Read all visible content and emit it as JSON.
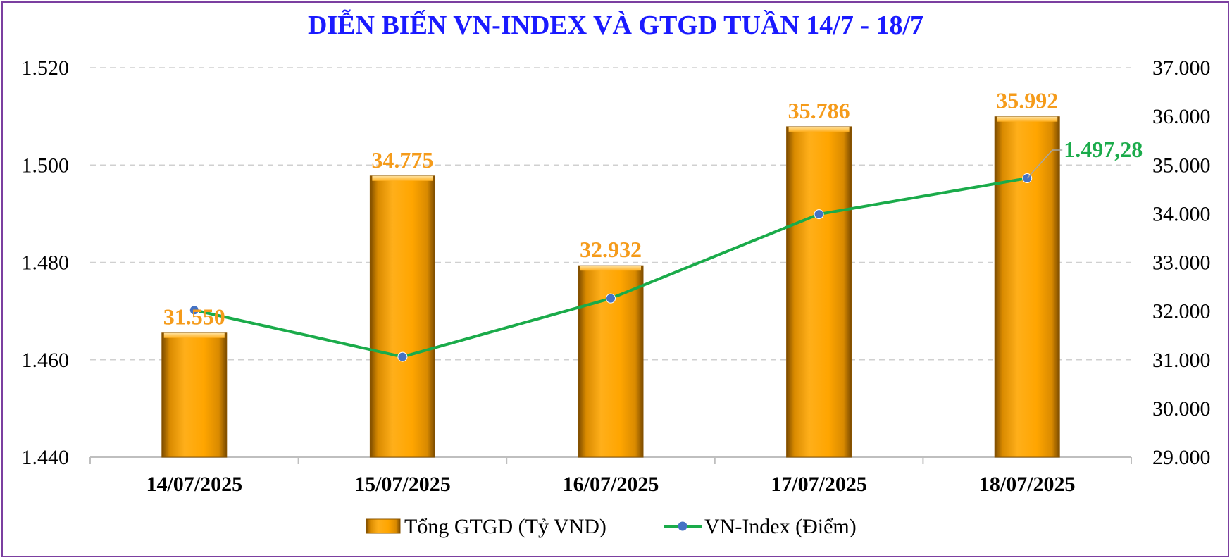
{
  "chart_data": {
    "type": "bar+line",
    "title": "DIỄN BIẾN VN-INDEX VÀ GTGD TUẦN 14/7 - 18/7",
    "categories": [
      "14/07/2025",
      "15/07/2025",
      "16/07/2025",
      "17/07/2025",
      "18/07/2025"
    ],
    "series": [
      {
        "name": "Tổng GTGD (Tỷ VND)",
        "kind": "bar",
        "axis": "right",
        "values": [
          31550,
          34775,
          32932,
          35786,
          35992
        ],
        "labels": [
          "31.550",
          "34.775",
          "32.932",
          "35.786",
          "35.992"
        ],
        "color": "#FFA500"
      },
      {
        "name": "VN-Index (Điểm)",
        "kind": "line",
        "axis": "left",
        "values": [
          1470.2,
          1460.6,
          1472.6,
          1489.9,
          1497.28
        ],
        "last_label": "1.497,28",
        "color": "#1aab4a",
        "marker_color": "#4472C4"
      }
    ],
    "y_left": {
      "min": 1440,
      "max": 1520,
      "ticks": [
        "1.440",
        "1.460",
        "1.480",
        "1.500",
        "1.520"
      ],
      "tick_values": [
        1440,
        1460,
        1480,
        1500,
        1520
      ]
    },
    "y_right": {
      "min": 29000,
      "max": 37000,
      "ticks": [
        "29.000",
        "30.000",
        "31.000",
        "32.000",
        "33.000",
        "34.000",
        "35.000",
        "36.000",
        "37.000"
      ],
      "tick_values": [
        29000,
        30000,
        31000,
        32000,
        33000,
        34000,
        35000,
        36000,
        37000
      ]
    },
    "grid": true,
    "legend_position": "bottom",
    "title_color": "#1a1aff",
    "bar_label_color": "#F59B1A",
    "line_label_color": "#1aab4a"
  }
}
